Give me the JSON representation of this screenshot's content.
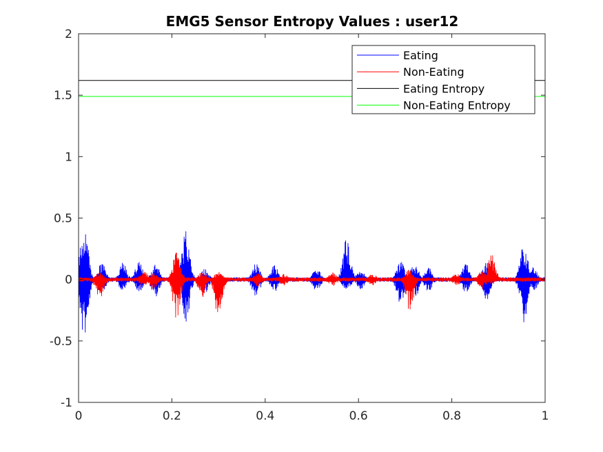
{
  "chart_data": {
    "type": "line",
    "title": "EMG5 Sensor Entropy Values : user12",
    "xlabel": "",
    "ylabel": "",
    "xlim": [
      0,
      1
    ],
    "ylim": [
      -1,
      2
    ],
    "x_ticks": [
      "0",
      "0.2",
      "0.4",
      "0.6",
      "0.8",
      "1"
    ],
    "x_tick_values": [
      0,
      0.2,
      0.4,
      0.6,
      0.8,
      1
    ],
    "y_ticks": [
      "-1",
      "-0.5",
      "0",
      "0.5",
      "1",
      "1.5",
      "2"
    ],
    "y_tick_values": [
      -1,
      -0.5,
      0,
      0.5,
      1,
      1.5,
      2
    ],
    "grid": false,
    "legend_position": "top-right",
    "series": [
      {
        "name": "Eating",
        "color": "#0000ff",
        "kind": "signal",
        "bursts": [
          [
            0.012,
            0.49,
            -0.5
          ],
          [
            0.05,
            0.14,
            -0.12
          ],
          [
            0.095,
            0.14,
            -0.1
          ],
          [
            0.13,
            0.15,
            -0.12
          ],
          [
            0.165,
            0.13,
            -0.15
          ],
          [
            0.23,
            0.44,
            -0.36
          ],
          [
            0.27,
            0.1,
            -0.12
          ],
          [
            0.38,
            0.14,
            -0.16
          ],
          [
            0.42,
            0.12,
            -0.1
          ],
          [
            0.51,
            0.1,
            -0.1
          ],
          [
            0.575,
            0.35,
            -0.1
          ],
          [
            0.605,
            0.08,
            -0.08
          ],
          [
            0.69,
            0.16,
            -0.2
          ],
          [
            0.72,
            0.14,
            -0.17
          ],
          [
            0.75,
            0.1,
            -0.1
          ],
          [
            0.83,
            0.13,
            -0.11
          ],
          [
            0.875,
            0.16,
            -0.17
          ],
          [
            0.955,
            0.31,
            -0.36
          ],
          [
            0.975,
            0.1,
            -0.1
          ]
        ]
      },
      {
        "name": "Non-Eating",
        "color": "#ff0000",
        "kind": "signal",
        "bursts": [
          [
            0.045,
            0.06,
            -0.17
          ],
          [
            0.14,
            0.07,
            -0.07
          ],
          [
            0.16,
            0.06,
            -0.08
          ],
          [
            0.21,
            0.24,
            -0.32
          ],
          [
            0.265,
            0.07,
            -0.15
          ],
          [
            0.3,
            0.07,
            -0.32
          ],
          [
            0.385,
            0.06,
            -0.06
          ],
          [
            0.44,
            0.05,
            -0.05
          ],
          [
            0.545,
            0.06,
            -0.06
          ],
          [
            0.63,
            0.05,
            -0.05
          ],
          [
            0.71,
            0.09,
            -0.26
          ],
          [
            0.81,
            0.05,
            -0.05
          ],
          [
            0.865,
            0.07,
            -0.08
          ],
          [
            0.885,
            0.22,
            -0.04
          ]
        ]
      },
      {
        "name": "Eating Entropy",
        "color": "#000000",
        "kind": "constant",
        "value": 1.62
      },
      {
        "name": "Non-Eating Entropy",
        "color": "#00ff00",
        "kind": "constant",
        "value": 1.49
      }
    ]
  }
}
